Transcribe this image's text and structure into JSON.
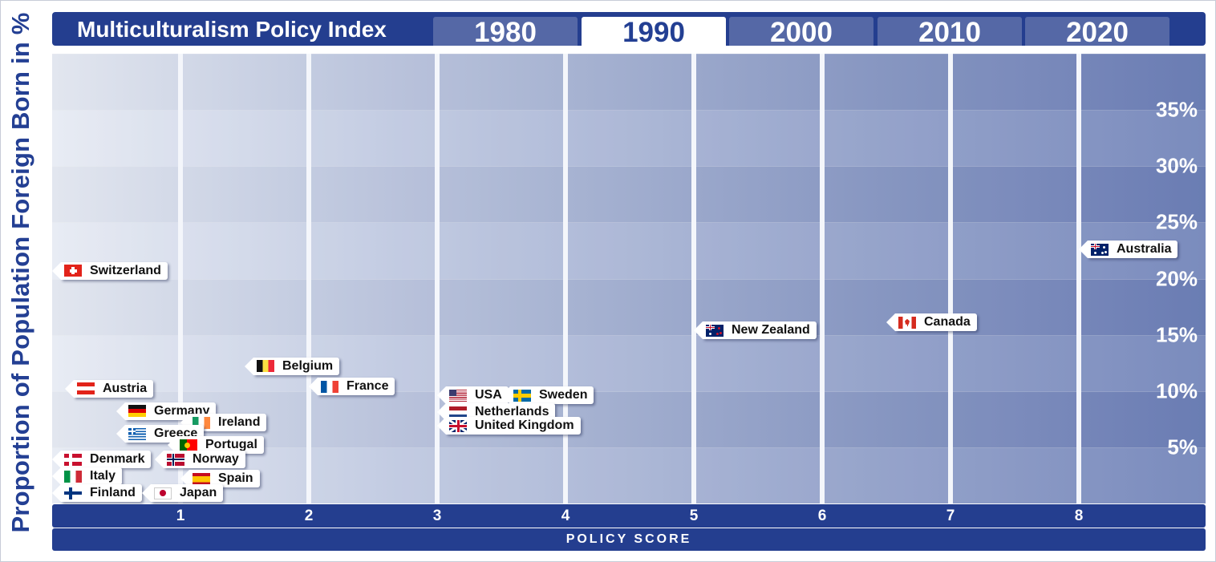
{
  "header": {
    "title": "Multiculturalism Policy Index",
    "tabs": [
      {
        "label": "1980",
        "active": false
      },
      {
        "label": "1990",
        "active": true
      },
      {
        "label": "2000",
        "active": false
      },
      {
        "label": "2010",
        "active": false
      },
      {
        "label": "2020",
        "active": false
      }
    ]
  },
  "colors": {
    "accent": "#243e8f",
    "tab_inactive": "#5568a6",
    "tab_active_bg": "#ffffff",
    "tab_active_text": "#233f93"
  },
  "chart_data": {
    "type": "scatter",
    "xlabel": "POLICY SCORE",
    "ylabel": "Proportion of Population Foreign Born in %",
    "x_ticks": [
      "1",
      "2",
      "3",
      "4",
      "5",
      "6",
      "7",
      "8"
    ],
    "y_ticks": [
      "5%",
      "10%",
      "15%",
      "20%",
      "25%",
      "30%",
      "35%"
    ],
    "xlim": [
      0,
      9
    ],
    "ylim": [
      0,
      40
    ],
    "grid": true,
    "points": [
      {
        "name": "Switzerland",
        "x": 0.0,
        "y": 20.7,
        "flag": "ch"
      },
      {
        "name": "Austria",
        "x": 0.1,
        "y": 10.2,
        "flag": "at"
      },
      {
        "name": "Germany",
        "x": 0.5,
        "y": 8.2,
        "flag": "de"
      },
      {
        "name": "Ireland",
        "x": 1.0,
        "y": 7.2,
        "flag": "ie"
      },
      {
        "name": "Greece",
        "x": 0.5,
        "y": 6.2,
        "flag": "gr"
      },
      {
        "name": "Portugal",
        "x": 0.9,
        "y": 5.2,
        "flag": "pt"
      },
      {
        "name": "Denmark",
        "x": 0.0,
        "y": 3.9,
        "flag": "dk"
      },
      {
        "name": "Norway",
        "x": 0.8,
        "y": 3.9,
        "flag": "no"
      },
      {
        "name": "Italy",
        "x": 0.0,
        "y": 2.4,
        "flag": "it"
      },
      {
        "name": "Spain",
        "x": 1.0,
        "y": 2.2,
        "flag": "es"
      },
      {
        "name": "Finland",
        "x": 0.0,
        "y": 0.9,
        "flag": "fi"
      },
      {
        "name": "Japan",
        "x": 0.7,
        "y": 0.9,
        "flag": "jp"
      },
      {
        "name": "Belgium",
        "x": 1.5,
        "y": 12.2,
        "flag": "be"
      },
      {
        "name": "France",
        "x": 2.0,
        "y": 10.4,
        "flag": "fr"
      },
      {
        "name": "USA",
        "x": 3.0,
        "y": 9.6,
        "flag": "us"
      },
      {
        "name": "Sweden",
        "x": 3.5,
        "y": 9.6,
        "flag": "se"
      },
      {
        "name": "Netherlands",
        "x": 3.0,
        "y": 8.1,
        "flag": "nl"
      },
      {
        "name": "United Kingdom",
        "x": 3.0,
        "y": 6.9,
        "flag": "gb"
      },
      {
        "name": "New Zealand",
        "x": 5.0,
        "y": 15.4,
        "flag": "nz"
      },
      {
        "name": "Canada",
        "x": 6.5,
        "y": 16.1,
        "flag": "ca"
      },
      {
        "name": "Australia",
        "x": 8.0,
        "y": 22.6,
        "flag": "au"
      }
    ]
  }
}
